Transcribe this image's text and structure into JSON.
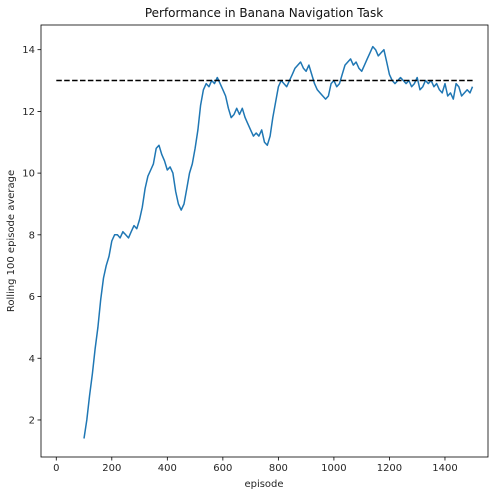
{
  "chart_data": {
    "type": "line",
    "title": "Performance in Banana Navigation Task",
    "xlabel": "episode",
    "ylabel": "Rolling 100 episode average",
    "xlim": [
      -55,
      1555
    ],
    "ylim": [
      0.8,
      14.8
    ],
    "xticks": [
      0,
      200,
      400,
      600,
      800,
      1000,
      1200,
      1400
    ],
    "yticks": [
      2,
      4,
      6,
      8,
      10,
      12,
      14
    ],
    "grid": false,
    "legend": "none",
    "series": [
      {
        "color": "#1f77b4",
        "style": "solid",
        "x": [
          100,
          110,
          120,
          130,
          140,
          150,
          160,
          170,
          180,
          190,
          200,
          210,
          220,
          230,
          240,
          250,
          260,
          270,
          280,
          290,
          300,
          310,
          320,
          330,
          340,
          350,
          360,
          370,
          380,
          390,
          400,
          410,
          420,
          430,
          440,
          450,
          460,
          470,
          480,
          490,
          500,
          510,
          520,
          530,
          540,
          550,
          560,
          570,
          580,
          590,
          600,
          610,
          620,
          630,
          640,
          650,
          660,
          670,
          680,
          690,
          700,
          710,
          720,
          730,
          740,
          750,
          760,
          770,
          780,
          790,
          800,
          810,
          820,
          830,
          840,
          850,
          860,
          870,
          880,
          890,
          900,
          910,
          920,
          930,
          940,
          950,
          960,
          970,
          980,
          990,
          1000,
          1010,
          1020,
          1030,
          1040,
          1050,
          1060,
          1070,
          1080,
          1090,
          1100,
          1110,
          1120,
          1130,
          1140,
          1150,
          1160,
          1170,
          1180,
          1190,
          1200,
          1210,
          1220,
          1230,
          1240,
          1250,
          1260,
          1270,
          1280,
          1290,
          1300,
          1310,
          1320,
          1330,
          1340,
          1350,
          1360,
          1370,
          1380,
          1390,
          1400,
          1410,
          1420,
          1430,
          1440,
          1450,
          1460,
          1470,
          1480,
          1490,
          1499
        ],
        "y": [
          1.4,
          2.0,
          2.8,
          3.5,
          4.3,
          5.0,
          5.9,
          6.6,
          7.0,
          7.3,
          7.8,
          8.0,
          8.0,
          7.9,
          8.1,
          8.0,
          7.9,
          8.1,
          8.3,
          8.2,
          8.5,
          8.9,
          9.5,
          9.9,
          10.1,
          10.3,
          10.8,
          10.9,
          10.6,
          10.4,
          10.1,
          10.2,
          10.0,
          9.4,
          9.0,
          8.8,
          9.0,
          9.5,
          10.0,
          10.3,
          10.8,
          11.4,
          12.2,
          12.7,
          12.9,
          12.8,
          13.0,
          12.9,
          13.1,
          12.9,
          12.7,
          12.5,
          12.1,
          11.8,
          11.9,
          12.1,
          11.9,
          12.1,
          11.8,
          11.6,
          11.4,
          11.2,
          11.3,
          11.2,
          11.4,
          11.0,
          10.9,
          11.2,
          11.8,
          12.3,
          12.8,
          13.0,
          12.9,
          12.8,
          13.0,
          13.2,
          13.4,
          13.5,
          13.6,
          13.4,
          13.3,
          13.5,
          13.2,
          12.9,
          12.7,
          12.6,
          12.5,
          12.4,
          12.5,
          12.9,
          13.0,
          12.8,
          12.9,
          13.2,
          13.5,
          13.6,
          13.7,
          13.5,
          13.6,
          13.4,
          13.3,
          13.5,
          13.7,
          13.9,
          14.1,
          14.0,
          13.8,
          13.9,
          14.0,
          13.6,
          13.2,
          13.0,
          12.9,
          13.0,
          13.1,
          13.0,
          12.9,
          13.0,
          12.8,
          12.9,
          13.1,
          12.7,
          12.8,
          13.0,
          12.9,
          13.0,
          12.8,
          12.9,
          12.7,
          12.6,
          12.9,
          12.5,
          12.6,
          12.4,
          12.9,
          12.8,
          12.5,
          12.6,
          12.7,
          12.6,
          12.8
        ]
      },
      {
        "color": "#000000",
        "style": "dashed",
        "x": [
          0,
          1500
        ],
        "y": [
          13,
          13
        ]
      }
    ]
  }
}
